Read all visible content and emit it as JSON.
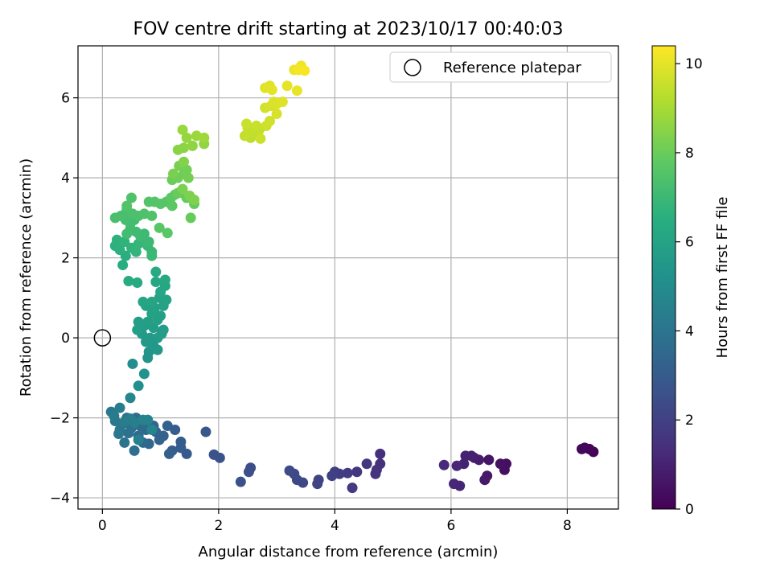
{
  "chart_data": {
    "type": "scatter",
    "title": "FOV centre drift starting at 2023/10/17 00:40:03",
    "xlabel": "Angular distance from reference (arcmin)",
    "ylabel": "Rotation from reference (arcmin)",
    "xlim": [
      -0.42,
      8.88
    ],
    "ylim": [
      -4.28,
      7.3
    ],
    "xticks": [
      "0",
      "2",
      "4",
      "6",
      "8"
    ],
    "yticks": [
      "−4",
      "−2",
      "0",
      "2",
      "4",
      "6"
    ],
    "grid": true,
    "legend": {
      "position": "top-right",
      "label": "Reference platepar"
    },
    "reference_point": {
      "x": 0,
      "y": 0
    },
    "colorbar": {
      "label": "Hours from first FF file",
      "range": [
        0,
        10.4
      ],
      "ticks": [
        "0",
        "2",
        "4",
        "6",
        "8",
        "10"
      ],
      "colormap": "viridis"
    },
    "series": [
      {
        "colored_by": "hours",
        "points": [
          [
            8.45,
            -2.85,
            0.05
          ],
          [
            8.38,
            -2.78,
            0.1
          ],
          [
            8.3,
            -2.75,
            0.15
          ],
          [
            8.25,
            -2.78,
            0.2
          ],
          [
            6.95,
            -3.15,
            0.4
          ],
          [
            6.92,
            -3.3,
            0.45
          ],
          [
            6.85,
            -3.15,
            0.5
          ],
          [
            6.65,
            -3.05,
            0.6
          ],
          [
            6.62,
            -3.45,
            0.65
          ],
          [
            6.58,
            -3.55,
            0.7
          ],
          [
            6.48,
            -3.05,
            0.8
          ],
          [
            6.4,
            -3.0,
            0.85
          ],
          [
            6.35,
            -2.95,
            0.9
          ],
          [
            6.25,
            -2.95,
            0.95
          ],
          [
            6.22,
            -3.15,
            1.0
          ],
          [
            6.15,
            -3.7,
            1.05
          ],
          [
            6.1,
            -3.2,
            1.1
          ],
          [
            6.05,
            -3.65,
            1.15
          ],
          [
            5.88,
            -3.18,
            1.25
          ],
          [
            4.78,
            -2.9,
            1.4
          ],
          [
            4.78,
            -3.15,
            1.45
          ],
          [
            4.72,
            -3.3,
            1.5
          ],
          [
            4.7,
            -3.4,
            1.55
          ],
          [
            4.55,
            -3.15,
            1.6
          ],
          [
            4.38,
            -3.35,
            1.7
          ],
          [
            4.3,
            -3.75,
            1.75
          ],
          [
            4.22,
            -3.38,
            1.8
          ],
          [
            4.08,
            -3.4,
            1.85
          ],
          [
            4.0,
            -3.35,
            1.9
          ],
          [
            3.95,
            -3.45,
            1.95
          ],
          [
            3.72,
            -3.55,
            2.05
          ],
          [
            3.7,
            -3.65,
            2.1
          ],
          [
            3.45,
            -3.62,
            2.2
          ],
          [
            3.35,
            -3.55,
            2.25
          ],
          [
            3.3,
            -3.4,
            2.3
          ],
          [
            3.22,
            -3.32,
            2.35
          ],
          [
            2.55,
            -3.25,
            2.45
          ],
          [
            2.52,
            -3.35,
            2.5
          ],
          [
            2.38,
            -3.6,
            2.55
          ],
          [
            2.02,
            -3.0,
            2.65
          ],
          [
            1.92,
            -2.92,
            2.7
          ],
          [
            1.78,
            -2.35,
            2.8
          ],
          [
            1.45,
            -2.9,
            2.9
          ],
          [
            1.35,
            -2.75,
            2.95
          ],
          [
            1.35,
            -2.6,
            3.0
          ],
          [
            1.25,
            -2.3,
            3.05
          ],
          [
            1.2,
            -2.82,
            3.1
          ],
          [
            1.15,
            -2.9,
            3.15
          ],
          [
            1.12,
            -2.2,
            3.2
          ],
          [
            1.05,
            -2.45,
            3.25
          ],
          [
            0.98,
            -2.55,
            3.3
          ],
          [
            0.92,
            -2.35,
            3.35
          ],
          [
            0.88,
            -2.2,
            3.4
          ],
          [
            0.8,
            -2.65,
            3.45
          ],
          [
            0.75,
            -2.3,
            3.5
          ],
          [
            0.7,
            -2.62,
            3.55
          ],
          [
            0.65,
            -2.2,
            3.6
          ],
          [
            0.62,
            -2.45,
            3.65
          ],
          [
            0.58,
            -2.0,
            3.7
          ],
          [
            0.55,
            -2.82,
            3.75
          ],
          [
            0.5,
            -2.25,
            3.8
          ],
          [
            0.45,
            -2.38,
            3.85
          ],
          [
            0.42,
            -2.0,
            3.9
          ],
          [
            0.38,
            -2.62,
            3.95
          ],
          [
            0.35,
            -2.15,
            4.0
          ],
          [
            0.3,
            -2.3,
            4.05
          ],
          [
            0.28,
            -2.4,
            4.1
          ],
          [
            0.22,
            -2.08,
            4.15
          ],
          [
            0.15,
            -1.85,
            4.2
          ],
          [
            0.2,
            -1.95,
            4.25
          ],
          [
            0.3,
            -1.75,
            4.3
          ],
          [
            0.38,
            -2.1,
            4.35
          ],
          [
            0.48,
            -2.02,
            4.4
          ],
          [
            0.55,
            -2.12,
            4.45
          ],
          [
            0.62,
            -2.55,
            4.5
          ],
          [
            0.7,
            -2.05,
            4.55
          ],
          [
            0.78,
            -2.05,
            4.6
          ],
          [
            0.85,
            -2.3,
            4.65
          ],
          [
            0.48,
            -1.5,
            4.75
          ],
          [
            0.52,
            -0.65,
            5.05
          ],
          [
            0.62,
            -1.2,
            5.15
          ],
          [
            0.72,
            -0.9,
            5.25
          ],
          [
            0.78,
            -0.5,
            5.35
          ],
          [
            0.8,
            -0.35,
            5.4
          ],
          [
            0.88,
            -0.2,
            5.45
          ],
          [
            0.95,
            -0.3,
            5.5
          ],
          [
            0.75,
            -0.1,
            5.55
          ],
          [
            0.68,
            0.1,
            5.6
          ],
          [
            0.82,
            0.0,
            5.62
          ],
          [
            0.95,
            0.0,
            5.65
          ],
          [
            1.02,
            0.1,
            5.68
          ],
          [
            1.05,
            0.2,
            5.7
          ],
          [
            0.88,
            0.25,
            5.72
          ],
          [
            0.72,
            0.3,
            5.75
          ],
          [
            0.6,
            0.2,
            5.78
          ],
          [
            0.62,
            0.4,
            5.8
          ],
          [
            0.78,
            0.4,
            5.82
          ],
          [
            0.95,
            0.45,
            5.85
          ],
          [
            1.0,
            0.55,
            5.88
          ],
          [
            0.85,
            0.6,
            5.9
          ],
          [
            0.75,
            0.8,
            5.93
          ],
          [
            0.9,
            0.75,
            5.95
          ],
          [
            1.05,
            0.8,
            5.98
          ],
          [
            1.1,
            0.95,
            6.0
          ],
          [
            0.98,
            1.0,
            6.02
          ],
          [
            0.85,
            0.9,
            6.05
          ],
          [
            0.7,
            0.9,
            6.08
          ],
          [
            1.0,
            1.15,
            6.12
          ],
          [
            1.08,
            1.3,
            6.15
          ],
          [
            0.92,
            1.4,
            6.18
          ],
          [
            1.08,
            1.45,
            6.22
          ],
          [
            0.92,
            1.65,
            6.26
          ],
          [
            0.6,
            1.38,
            6.3
          ],
          [
            0.45,
            1.42,
            6.35
          ],
          [
            0.35,
            1.82,
            6.45
          ],
          [
            0.4,
            2.05,
            6.52
          ],
          [
            0.3,
            2.2,
            6.58
          ],
          [
            0.22,
            2.3,
            6.62
          ],
          [
            0.25,
            2.45,
            6.66
          ],
          [
            0.38,
            2.4,
            6.7
          ],
          [
            0.5,
            2.25,
            6.74
          ],
          [
            0.58,
            2.15,
            6.78
          ],
          [
            0.62,
            2.35,
            6.82
          ],
          [
            0.7,
            2.45,
            6.86
          ],
          [
            0.78,
            2.3,
            6.9
          ],
          [
            0.85,
            2.15,
            6.94
          ],
          [
            0.85,
            2.05,
            6.97
          ],
          [
            0.8,
            2.4,
            7.0
          ],
          [
            0.72,
            2.6,
            7.03
          ],
          [
            0.65,
            2.55,
            7.06
          ],
          [
            0.58,
            2.65,
            7.09
          ],
          [
            0.48,
            2.72,
            7.12
          ],
          [
            0.42,
            2.6,
            7.15
          ],
          [
            0.55,
            2.95,
            7.18
          ],
          [
            0.48,
            2.85,
            7.21
          ],
          [
            0.4,
            2.95,
            7.24
          ],
          [
            0.32,
            3.05,
            7.27
          ],
          [
            0.22,
            3.0,
            7.3
          ],
          [
            0.42,
            3.2,
            7.33
          ],
          [
            0.52,
            3.1,
            7.36
          ],
          [
            0.62,
            3.05,
            7.39
          ],
          [
            0.72,
            3.1,
            7.42
          ],
          [
            0.85,
            3.05,
            7.45
          ],
          [
            0.5,
            3.5,
            7.48
          ],
          [
            0.42,
            3.3,
            7.5
          ],
          [
            0.8,
            3.4,
            7.53
          ],
          [
            0.9,
            3.4,
            7.56
          ],
          [
            1.0,
            3.35,
            7.59
          ],
          [
            1.1,
            3.4,
            7.62
          ],
          [
            0.98,
            2.75,
            7.65
          ],
          [
            1.12,
            2.62,
            7.68
          ],
          [
            1.2,
            3.3,
            7.71
          ],
          [
            1.18,
            3.5,
            7.74
          ],
          [
            1.25,
            3.58,
            7.78
          ],
          [
            1.38,
            3.62,
            7.82
          ],
          [
            1.45,
            3.5,
            7.86
          ],
          [
            1.58,
            3.35,
            7.9
          ],
          [
            1.52,
            3.0,
            7.93
          ],
          [
            1.3,
            3.62,
            7.96
          ],
          [
            1.2,
            3.95,
            8.0
          ],
          [
            1.3,
            4.0,
            8.04
          ],
          [
            1.4,
            4.1,
            8.08
          ],
          [
            1.45,
            4.2,
            8.12
          ],
          [
            1.48,
            4.0,
            8.16
          ],
          [
            1.32,
            4.3,
            8.2
          ],
          [
            1.22,
            4.1,
            8.24
          ],
          [
            1.38,
            3.72,
            8.28
          ],
          [
            1.5,
            3.55,
            8.32
          ],
          [
            1.58,
            3.45,
            8.36
          ],
          [
            1.4,
            4.4,
            8.4
          ],
          [
            1.3,
            4.7,
            8.5
          ],
          [
            1.4,
            4.75,
            8.55
          ],
          [
            1.55,
            4.8,
            8.6
          ],
          [
            1.75,
            4.85,
            8.65
          ],
          [
            1.45,
            5.0,
            8.7
          ],
          [
            1.38,
            5.2,
            8.75
          ],
          [
            1.62,
            5.05,
            8.8
          ],
          [
            1.75,
            5.0,
            8.85
          ],
          [
            2.55,
            5.0,
            9.35
          ],
          [
            2.62,
            5.1,
            9.38
          ],
          [
            2.7,
            5.2,
            9.41
          ],
          [
            2.55,
            5.15,
            9.44
          ],
          [
            2.45,
            5.05,
            9.47
          ],
          [
            2.5,
            5.25,
            9.5
          ],
          [
            2.65,
            5.3,
            9.53
          ],
          [
            2.48,
            5.35,
            9.56
          ],
          [
            2.72,
            4.98,
            9.59
          ],
          [
            2.82,
            5.3,
            9.62
          ],
          [
            2.88,
            5.42,
            9.65
          ],
          [
            2.8,
            5.75,
            9.7
          ],
          [
            2.9,
            5.8,
            9.75
          ],
          [
            3.0,
            5.6,
            9.8
          ],
          [
            3.0,
            5.85,
            9.83
          ],
          [
            2.95,
            5.9,
            9.86
          ],
          [
            3.1,
            5.9,
            9.89
          ],
          [
            2.8,
            6.25,
            9.92
          ],
          [
            2.88,
            6.3,
            9.95
          ],
          [
            2.92,
            6.2,
            9.98
          ],
          [
            3.18,
            6.3,
            10.02
          ],
          [
            3.35,
            6.18,
            10.06
          ],
          [
            3.3,
            6.7,
            10.12
          ],
          [
            3.42,
            6.8,
            10.18
          ],
          [
            3.38,
            6.7,
            10.24
          ],
          [
            3.48,
            6.68,
            10.3
          ]
        ]
      }
    ]
  }
}
